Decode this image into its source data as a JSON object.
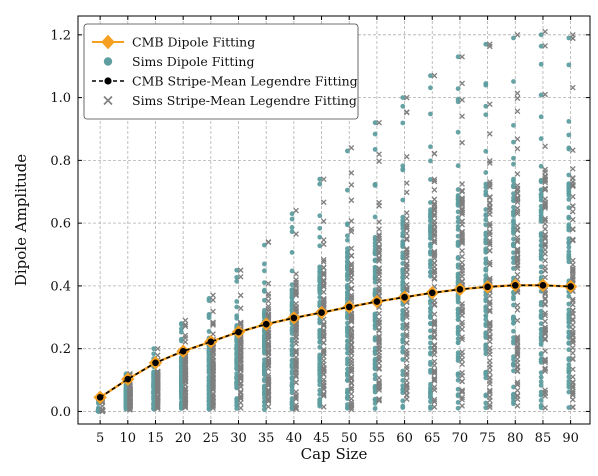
{
  "chart_data": {
    "type": "scatter",
    "title": "",
    "xlabel": "Cap Size",
    "ylabel": "Dipole Amplitude",
    "x_ticks": [
      5,
      10,
      15,
      20,
      25,
      30,
      35,
      40,
      45,
      50,
      55,
      60,
      65,
      70,
      75,
      80,
      85,
      90
    ],
    "y_ticks": [
      0.0,
      0.2,
      0.4,
      0.6,
      0.8,
      1.0,
      1.2
    ],
    "xlim": [
      1,
      93.5
    ],
    "ylim": [
      -0.04,
      1.26
    ],
    "grid": true,
    "legend_position": "top-left",
    "colors": {
      "cmb_dipole": "#f5a020",
      "sims_dipole": "#5f9ea0",
      "cmb_legendre": "#000000",
      "sims_legendre": "#7f7f7f"
    },
    "series": [
      {
        "name": "CMB Dipole Fitting",
        "marker": "diamond",
        "style": "line",
        "x": [
          5,
          10,
          15,
          20,
          25,
          30,
          35,
          40,
          45,
          50,
          55,
          60,
          65,
          70,
          75,
          80,
          85,
          90
        ],
        "y": [
          0.045,
          0.103,
          0.155,
          0.192,
          0.222,
          0.253,
          0.278,
          0.298,
          0.315,
          0.333,
          0.35,
          0.364,
          0.378,
          0.389,
          0.397,
          0.402,
          0.402,
          0.398
        ]
      },
      {
        "name": "Sims Dipole Fitting",
        "marker": "circle",
        "style": "scatter",
        "x": [
          5,
          10,
          15,
          20,
          25,
          30,
          35,
          40,
          45,
          50,
          55,
          60,
          65,
          70,
          75,
          80,
          85,
          90
        ],
        "y_min": [
          0.005,
          0.005,
          0.005,
          0.005,
          0.005,
          0.005,
          0.005,
          0.005,
          0.005,
          0.005,
          0.005,
          0.005,
          0.005,
          0.005,
          0.005,
          0.005,
          0.005,
          0.005
        ],
        "y_max": [
          0.04,
          0.12,
          0.2,
          0.28,
          0.36,
          0.45,
          0.53,
          0.63,
          0.74,
          0.83,
          0.92,
          1.0,
          1.07,
          1.13,
          1.17,
          1.19,
          1.2,
          1.19
        ]
      },
      {
        "name": "CMB Stripe-Mean Legendre Fitting",
        "marker": "circle",
        "style": "dashed-line",
        "x": [
          5,
          10,
          15,
          20,
          25,
          30,
          35,
          40,
          45,
          50,
          55,
          60,
          65,
          70,
          75,
          80,
          85,
          90
        ],
        "y": [
          0.045,
          0.103,
          0.155,
          0.192,
          0.222,
          0.253,
          0.278,
          0.298,
          0.315,
          0.333,
          0.35,
          0.364,
          0.378,
          0.389,
          0.397,
          0.402,
          0.402,
          0.398
        ]
      },
      {
        "name": "Sims Stripe-Mean Legendre Fitting",
        "marker": "x",
        "style": "scatter",
        "x": [
          5,
          10,
          15,
          20,
          25,
          30,
          35,
          40,
          45,
          50,
          55,
          60,
          65,
          70,
          75,
          80,
          85,
          90
        ],
        "y_min": [
          0.005,
          0.005,
          0.005,
          0.005,
          0.005,
          0.005,
          0.005,
          0.005,
          0.005,
          0.005,
          0.005,
          0.005,
          0.005,
          0.005,
          0.005,
          0.005,
          0.005,
          0.005
        ],
        "y_max": [
          0.04,
          0.12,
          0.2,
          0.29,
          0.37,
          0.45,
          0.54,
          0.64,
          0.74,
          0.84,
          0.92,
          1.0,
          1.07,
          1.13,
          1.17,
          1.2,
          1.21,
          1.2
        ]
      }
    ]
  }
}
